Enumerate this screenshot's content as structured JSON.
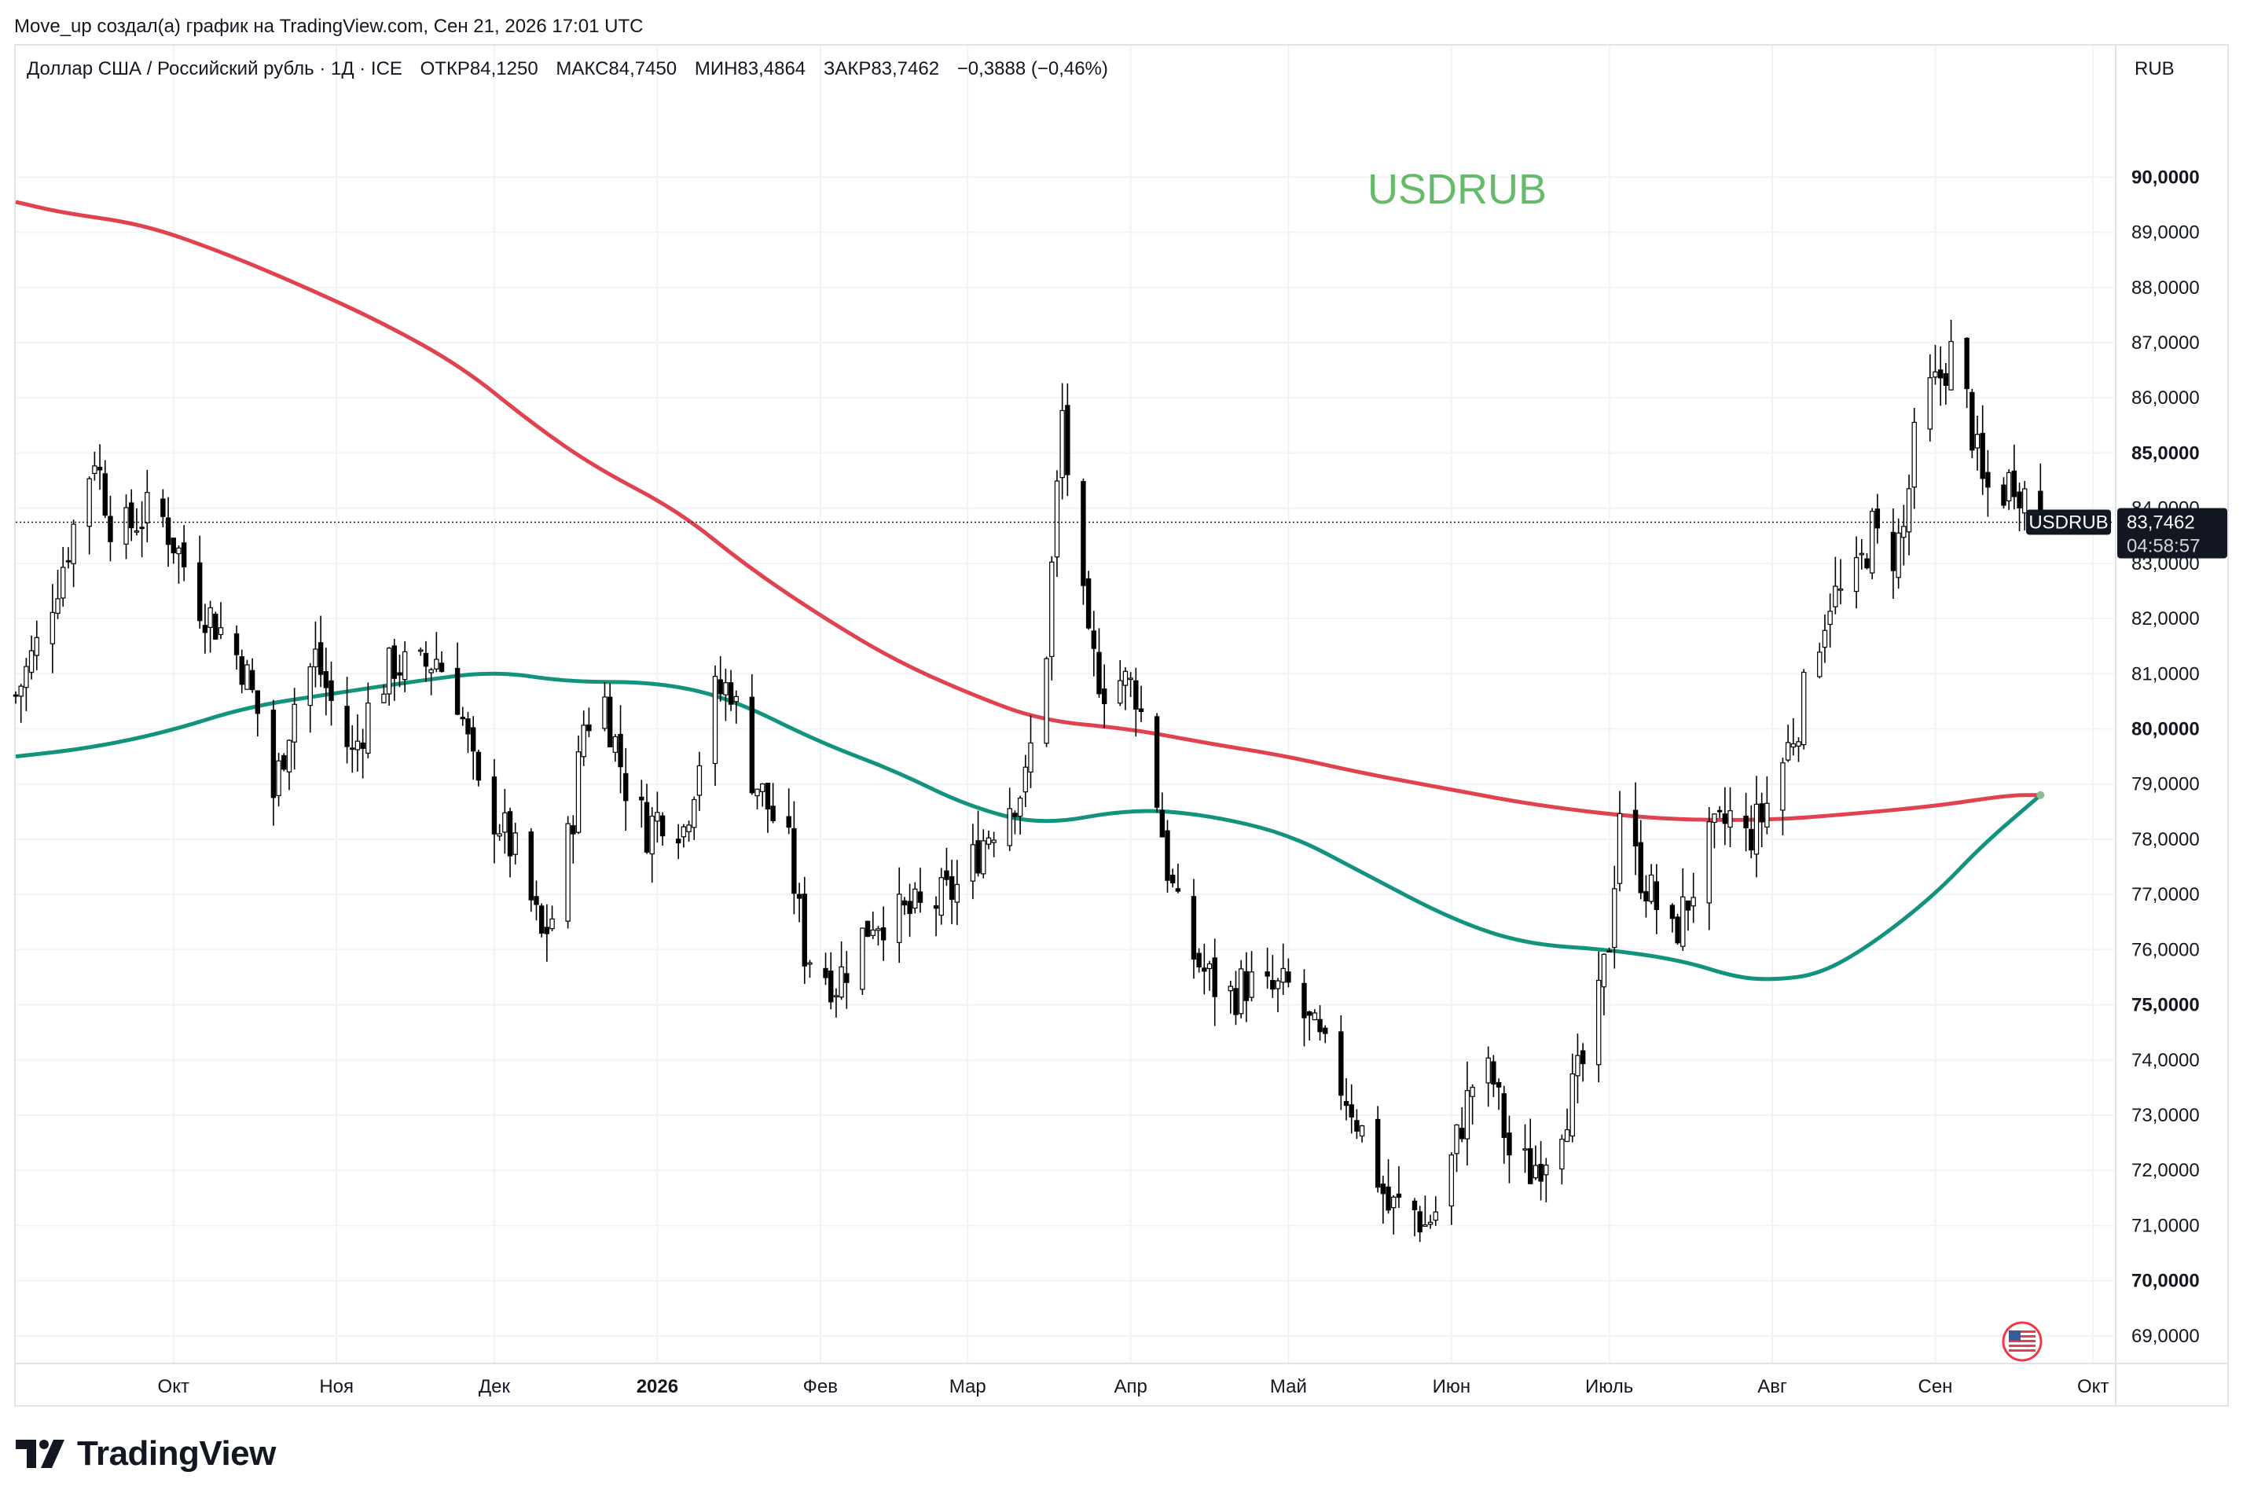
{
  "header": {
    "credit": "Move_up создал(а) график на TradingView.com, Сен 21, 2026 17:01 UTC",
    "instrument": "Доллар США / Российский рубль · 1Д · ICE",
    "open": "ОТКР84,1250",
    "high": "МАКС84,7450",
    "low": "МИН83,4864",
    "close": "ЗАКР83,7462",
    "change": "−0,3888 (−0,46%)",
    "currency": "RUB"
  },
  "watermark": "USDRUB",
  "price_tag": {
    "symbol": "USDRUB",
    "price": "83,7462",
    "countdown": "04:58:57"
  },
  "brand": "TradingView",
  "colors": {
    "ma_long": "#e0424f",
    "ma_short": "#12937d",
    "watermark": "#66bb6a",
    "candle": "#000000",
    "grid": "#f0f3fa"
  },
  "chart_data": {
    "type": "candlestick",
    "symbol": "USDRUB",
    "ylim": [
      68.5,
      91.5
    ],
    "y_ticks": [
      "69,0000",
      "70,0000",
      "71,0000",
      "72,0000",
      "73,0000",
      "74,0000",
      "75,0000",
      "76,0000",
      "77,0000",
      "78,0000",
      "79,0000",
      "80,0000",
      "81,0000",
      "82,0000",
      "83,0000",
      "84,0000",
      "85,0000",
      "86,0000",
      "87,0000",
      "88,0000",
      "89,0000",
      "90,0000"
    ],
    "y_tick_values": [
      69,
      70,
      71,
      72,
      73,
      74,
      75,
      76,
      77,
      78,
      79,
      80,
      81,
      82,
      83,
      84,
      85,
      86,
      87,
      88,
      89,
      90
    ],
    "bold_ticks": [
      70,
      75,
      80,
      85,
      90
    ],
    "x_ticks": [
      {
        "label": "Окт",
        "date": "2025-10-01"
      },
      {
        "label": "Ноя",
        "date": "2025-11-01"
      },
      {
        "label": "Дек",
        "date": "2025-12-01"
      },
      {
        "label": "2026",
        "date": "2026-01-01",
        "bold": true
      },
      {
        "label": "Фев",
        "date": "2026-02-01"
      },
      {
        "label": "Мар",
        "date": "2026-03-01"
      },
      {
        "label": "Апр",
        "date": "2026-04-01"
      },
      {
        "label": "Май",
        "date": "2026-05-01"
      },
      {
        "label": "Июн",
        "date": "2026-06-01"
      },
      {
        "label": "Июль",
        "date": "2026-07-01"
      },
      {
        "label": "Авг",
        "date": "2026-08-01"
      },
      {
        "label": "Сен",
        "date": "2026-09-01"
      },
      {
        "label": "Окт",
        "date": "2026-10-01"
      }
    ],
    "x_range": [
      "2025-09-01",
      "2026-10-05"
    ],
    "last_close": 83.7462,
    "price_path": [
      [
        "2025-09-01",
        80.6
      ],
      [
        "2025-09-05",
        81.5
      ],
      [
        "2025-09-10",
        83.0
      ],
      [
        "2025-09-13",
        84.0
      ],
      [
        "2025-09-16",
        85.0
      ],
      [
        "2025-09-20",
        83.4
      ],
      [
        "2025-09-24",
        83.8
      ],
      [
        "2025-09-28",
        84.0
      ],
      [
        "2025-10-02",
        83.2
      ],
      [
        "2025-10-06",
        82.3
      ],
      [
        "2025-10-10",
        81.8
      ],
      [
        "2025-10-14",
        81.2
      ],
      [
        "2025-10-18",
        80.0
      ],
      [
        "2025-10-20",
        78.8
      ],
      [
        "2025-10-24",
        80.5
      ],
      [
        "2025-10-28",
        81.3
      ],
      [
        "2025-11-01",
        80.2
      ],
      [
        "2025-11-04",
        79.5
      ],
      [
        "2025-11-08",
        80.6
      ],
      [
        "2025-11-12",
        81.2
      ],
      [
        "2025-11-16",
        81.0
      ],
      [
        "2025-11-20",
        81.3
      ],
      [
        "2025-11-24",
        80.6
      ],
      [
        "2025-11-28",
        78.8
      ],
      [
        "2025-12-02",
        78.3
      ],
      [
        "2025-12-06",
        77.5
      ],
      [
        "2025-12-10",
        76.2
      ],
      [
        "2025-12-13",
        76.8
      ],
      [
        "2025-12-16",
        78.5
      ],
      [
        "2025-12-18",
        80.1
      ],
      [
        "2025-12-22",
        80.5
      ],
      [
        "2025-12-26",
        79.0
      ],
      [
        "2025-12-30",
        78.2
      ],
      [
        "2026-01-03",
        78.6
      ],
      [
        "2026-01-06",
        78.2
      ],
      [
        "2026-01-09",
        79.5
      ],
      [
        "2026-01-12",
        80.6
      ],
      [
        "2026-01-15",
        80.8
      ],
      [
        "2026-01-18",
        79.4
      ],
      [
        "2026-01-22",
        78.6
      ],
      [
        "2026-01-26",
        77.8
      ],
      [
        "2026-01-29",
        76.0
      ],
      [
        "2026-02-01",
        75.7
      ],
      [
        "2026-02-04",
        75.4
      ],
      [
        "2026-02-07",
        75.9
      ],
      [
        "2026-02-11",
        76.6
      ],
      [
        "2026-02-16",
        76.6
      ],
      [
        "2026-02-20",
        76.7
      ],
      [
        "2026-02-24",
        76.9
      ],
      [
        "2026-02-28",
        77.2
      ],
      [
        "2026-03-04",
        78.0
      ],
      [
        "2026-03-08",
        78.6
      ],
      [
        "2026-03-12",
        79.0
      ],
      [
        "2026-03-16",
        81.5
      ],
      [
        "2026-03-19",
        85.7
      ],
      [
        "2026-03-21",
        83.7
      ],
      [
        "2026-03-24",
        81.4
      ],
      [
        "2026-03-27",
        80.8
      ],
      [
        "2026-03-30",
        80.9
      ],
      [
        "2026-04-02",
        80.7
      ],
      [
        "2026-04-05",
        79.4
      ],
      [
        "2026-04-08",
        77.5
      ],
      [
        "2026-04-11",
        76.2
      ],
      [
        "2026-04-15",
        75.6
      ],
      [
        "2026-04-19",
        75.1
      ],
      [
        "2026-04-23",
        75.4
      ],
      [
        "2026-04-27",
        75.2
      ],
      [
        "2026-05-01",
        75.3
      ],
      [
        "2026-05-05",
        74.6
      ],
      [
        "2026-05-09",
        73.9
      ],
      [
        "2026-05-13",
        73.2
      ],
      [
        "2026-05-17",
        72.2
      ],
      [
        "2026-05-20",
        71.3
      ],
      [
        "2026-05-24",
        71.4
      ],
      [
        "2026-05-27",
        71.0
      ],
      [
        "2026-05-30",
        71.4
      ],
      [
        "2026-06-03",
        72.9
      ],
      [
        "2026-06-06",
        73.9
      ],
      [
        "2026-06-09",
        73.6
      ],
      [
        "2026-06-12",
        72.3
      ],
      [
        "2026-06-16",
        72.0
      ],
      [
        "2026-06-20",
        72.5
      ],
      [
        "2026-06-24",
        73.4
      ],
      [
        "2026-06-28",
        74.4
      ],
      [
        "2026-07-01",
        76.2
      ],
      [
        "2026-07-03",
        78.6
      ],
      [
        "2026-07-06",
        77.6
      ],
      [
        "2026-07-09",
        77.0
      ],
      [
        "2026-07-13",
        76.2
      ],
      [
        "2026-07-16",
        76.9
      ],
      [
        "2026-07-20",
        77.9
      ],
      [
        "2026-07-24",
        78.4
      ],
      [
        "2026-07-27",
        78.0
      ],
      [
        "2026-07-30",
        78.4
      ],
      [
        "2026-08-03",
        79.4
      ],
      [
        "2026-08-06",
        80.2
      ],
      [
        "2026-08-09",
        81.4
      ],
      [
        "2026-08-12",
        82.4
      ],
      [
        "2026-08-16",
        82.4
      ],
      [
        "2026-08-20",
        83.6
      ],
      [
        "2026-08-23",
        83.0
      ],
      [
        "2026-08-26",
        83.6
      ],
      [
        "2026-08-29",
        85.9
      ],
      [
        "2026-09-01",
        86.2
      ],
      [
        "2026-09-04",
        86.8
      ],
      [
        "2026-09-07",
        85.9
      ],
      [
        "2026-09-10",
        84.4
      ],
      [
        "2026-09-13",
        84.2
      ],
      [
        "2026-09-16",
        84.6
      ],
      [
        "2026-09-19",
        84.1
      ],
      [
        "2026-09-21",
        83.7462
      ]
    ],
    "series": [
      {
        "name": "",
        "kind": "moving-average-long",
        "color": "#e0424f",
        "points": [
          [
            "2025-09-01",
            89.55
          ],
          [
            "2025-09-10",
            89.35
          ],
          [
            "2025-09-25",
            89.15
          ],
          [
            "2025-10-10",
            88.65
          ],
          [
            "2025-10-25",
            88.05
          ],
          [
            "2025-11-10",
            87.35
          ],
          [
            "2025-11-25",
            86.55
          ],
          [
            "2025-12-08",
            85.55
          ],
          [
            "2025-12-20",
            84.75
          ],
          [
            "2026-01-05",
            83.95
          ],
          [
            "2026-01-18",
            82.95
          ],
          [
            "2026-02-01",
            82.05
          ],
          [
            "2026-02-15",
            81.25
          ],
          [
            "2026-03-01",
            80.65
          ],
          [
            "2026-03-15",
            80.15
          ],
          [
            "2026-04-01",
            80.0
          ],
          [
            "2026-04-15",
            79.75
          ],
          [
            "2026-05-01",
            79.5
          ],
          [
            "2026-05-15",
            79.2
          ],
          [
            "2026-06-01",
            78.9
          ],
          [
            "2026-06-15",
            78.65
          ],
          [
            "2026-07-01",
            78.45
          ],
          [
            "2026-07-15",
            78.35
          ],
          [
            "2026-08-01",
            78.35
          ],
          [
            "2026-08-15",
            78.45
          ],
          [
            "2026-09-01",
            78.6
          ],
          [
            "2026-09-15",
            78.8
          ],
          [
            "2026-09-21",
            78.8
          ]
        ]
      },
      {
        "name": "",
        "kind": "moving-average-short",
        "color": "#12937d",
        "points": [
          [
            "2025-09-01",
            79.5
          ],
          [
            "2025-09-15",
            79.65
          ],
          [
            "2025-09-30",
            79.95
          ],
          [
            "2025-10-15",
            80.4
          ],
          [
            "2025-11-01",
            80.65
          ],
          [
            "2025-11-15",
            80.85
          ],
          [
            "2025-12-01",
            81.05
          ],
          [
            "2025-12-15",
            80.85
          ],
          [
            "2026-01-01",
            80.85
          ],
          [
            "2026-01-15",
            80.55
          ],
          [
            "2026-02-01",
            79.75
          ],
          [
            "2026-02-15",
            79.25
          ],
          [
            "2026-03-01",
            78.6
          ],
          [
            "2026-03-15",
            78.25
          ],
          [
            "2026-04-01",
            78.55
          ],
          [
            "2026-04-15",
            78.45
          ],
          [
            "2026-05-01",
            78.1
          ],
          [
            "2026-05-15",
            77.4
          ],
          [
            "2026-06-01",
            76.55
          ],
          [
            "2026-06-15",
            76.1
          ],
          [
            "2026-07-01",
            76.0
          ],
          [
            "2026-07-15",
            75.8
          ],
          [
            "2026-07-25",
            75.5
          ],
          [
            "2026-08-01",
            75.45
          ],
          [
            "2026-08-10",
            75.55
          ],
          [
            "2026-08-20",
            76.1
          ],
          [
            "2026-09-01",
            77.0
          ],
          [
            "2026-09-10",
            77.9
          ],
          [
            "2026-09-21",
            78.8
          ]
        ]
      }
    ]
  }
}
